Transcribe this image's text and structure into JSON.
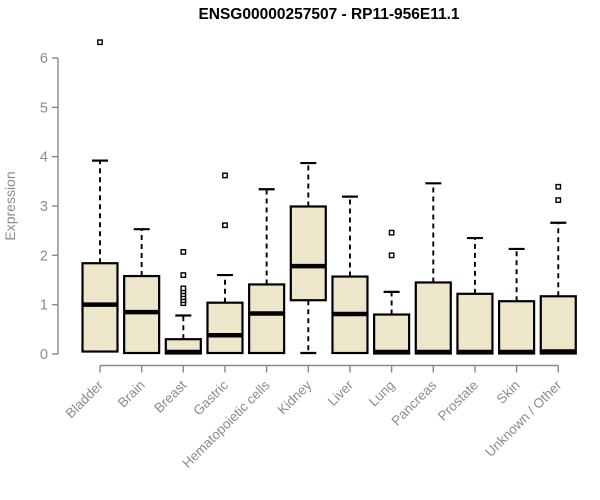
{
  "chart_data": {
    "type": "boxplot",
    "title": "ENSG00000257507 - RP11-956E11.1",
    "xlabel": "",
    "ylabel": "Expression",
    "ylim": [
      0,
      6.4
    ],
    "yticks": [
      0,
      1,
      2,
      3,
      4,
      5,
      6
    ],
    "grid": false,
    "legend": "none",
    "colors": {
      "box_fill": "#EDE6CA",
      "box_stroke": "#000000",
      "median": "#000000",
      "whisker": "#000000",
      "outlier_stroke": "#000000",
      "outlier_fill": "#ffffff",
      "axis_line": "#888888",
      "axis_text": "#8c8c8c",
      "title_text": "#000000",
      "background": "#ffffff"
    },
    "categories": [
      "Bladder",
      "Brain",
      "Breast",
      "Gastric",
      "Hematopoietic cells",
      "Kidney",
      "Liver",
      "Lung",
      "Pancreas",
      "Prostate",
      "Skin",
      "Unknown / Other"
    ],
    "series": [
      {
        "name": "Bladder",
        "min": 0.03,
        "q1": 0.05,
        "median": 1.0,
        "q3": 1.84,
        "max": 3.92,
        "outliers": [
          6.32
        ]
      },
      {
        "name": "Brain",
        "min": 0.02,
        "q1": 0.02,
        "median": 0.85,
        "q3": 1.58,
        "max": 2.53,
        "outliers": []
      },
      {
        "name": "Breast",
        "min": 0.0,
        "q1": 0.01,
        "median": 0.04,
        "q3": 0.3,
        "max": 0.78,
        "outliers": [
          1.03,
          1.09,
          1.15,
          1.21,
          1.27,
          1.33,
          1.6,
          2.07
        ]
      },
      {
        "name": "Gastric",
        "min": 0.02,
        "q1": 0.02,
        "median": 0.38,
        "q3": 1.04,
        "max": 1.6,
        "outliers": [
          2.61,
          3.62
        ]
      },
      {
        "name": "Hematopoietic cells",
        "min": 0.02,
        "q1": 0.02,
        "median": 0.82,
        "q3": 1.41,
        "max": 3.34,
        "outliers": []
      },
      {
        "name": "Kidney",
        "min": 0.02,
        "q1": 1.09,
        "median": 1.78,
        "q3": 2.99,
        "max": 3.87,
        "outliers": []
      },
      {
        "name": "Liver",
        "min": 0.01,
        "q1": 0.02,
        "median": 0.81,
        "q3": 1.57,
        "max": 3.19,
        "outliers": []
      },
      {
        "name": "Lung",
        "min": 0.0,
        "q1": 0.01,
        "median": 0.04,
        "q3": 0.8,
        "max": 1.26,
        "outliers": [
          2.0,
          2.46
        ]
      },
      {
        "name": "Pancreas",
        "min": 0.0,
        "q1": 0.01,
        "median": 0.04,
        "q3": 1.45,
        "max": 3.46,
        "outliers": []
      },
      {
        "name": "Prostate",
        "min": 0.0,
        "q1": 0.01,
        "median": 0.04,
        "q3": 1.22,
        "max": 2.35,
        "outliers": []
      },
      {
        "name": "Skin",
        "min": 0.0,
        "q1": 0.01,
        "median": 0.04,
        "q3": 1.07,
        "max": 2.13,
        "outliers": []
      },
      {
        "name": "Unknown / Other",
        "min": 0.0,
        "q1": 0.01,
        "median": 0.05,
        "q3": 1.17,
        "max": 2.66,
        "outliers": [
          3.12,
          3.39
        ]
      }
    ]
  }
}
